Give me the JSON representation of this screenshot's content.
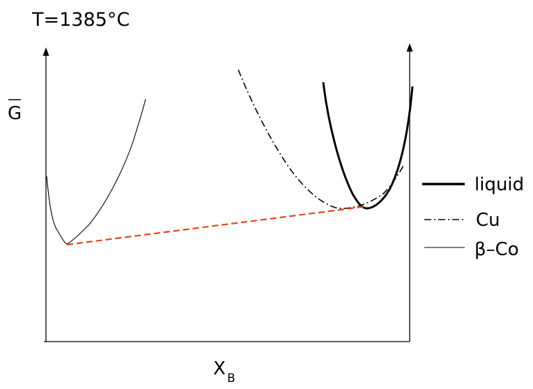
{
  "title": "T=1385°C",
  "y_axis_label": "G",
  "x_axis_label": {
    "main": "X",
    "subscript": "B"
  },
  "legend": [
    {
      "key": "liquid",
      "label": "liquid",
      "style": "solid-thick"
    },
    {
      "key": "cu",
      "label": "Cu",
      "style": "dash-dot"
    },
    {
      "key": "beta_co",
      "label": "β–Co",
      "style": "solid-thin"
    }
  ],
  "colors": {
    "curve": "#000000",
    "tangent": "#e8401c",
    "axis": "#000000"
  },
  "curves_description": {
    "liquid": "parabola-like free energy curve near high X_B",
    "cu": "dash-dot free energy curve near high X_B",
    "beta_co": "thin free energy curve near low X_B",
    "common_tangent": "red dashed common tangent line"
  }
}
